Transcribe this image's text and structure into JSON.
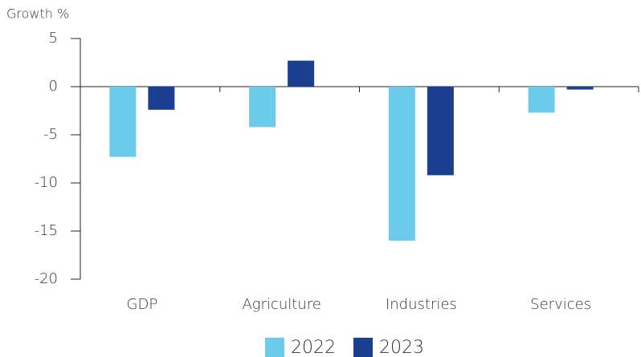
{
  "chart_data": {
    "type": "bar",
    "y_label": "Growth %",
    "categories": [
      "GDP",
      "Agriculture",
      "Industries",
      "Services"
    ],
    "series": [
      {
        "name": "2022",
        "color": "#6ccaea",
        "values": [
          -7.3,
          -4.2,
          -16,
          -2.7
        ]
      },
      {
        "name": "2023",
        "color": "#1b3f91",
        "values": [
          -2.4,
          2.7,
          -9.2,
          -0.3
        ]
      }
    ],
    "ylim": [
      -20,
      5
    ],
    "yticks": [
      -20,
      -15,
      -10,
      -5,
      0,
      5
    ],
    "grid": false,
    "legend": "bottom"
  }
}
